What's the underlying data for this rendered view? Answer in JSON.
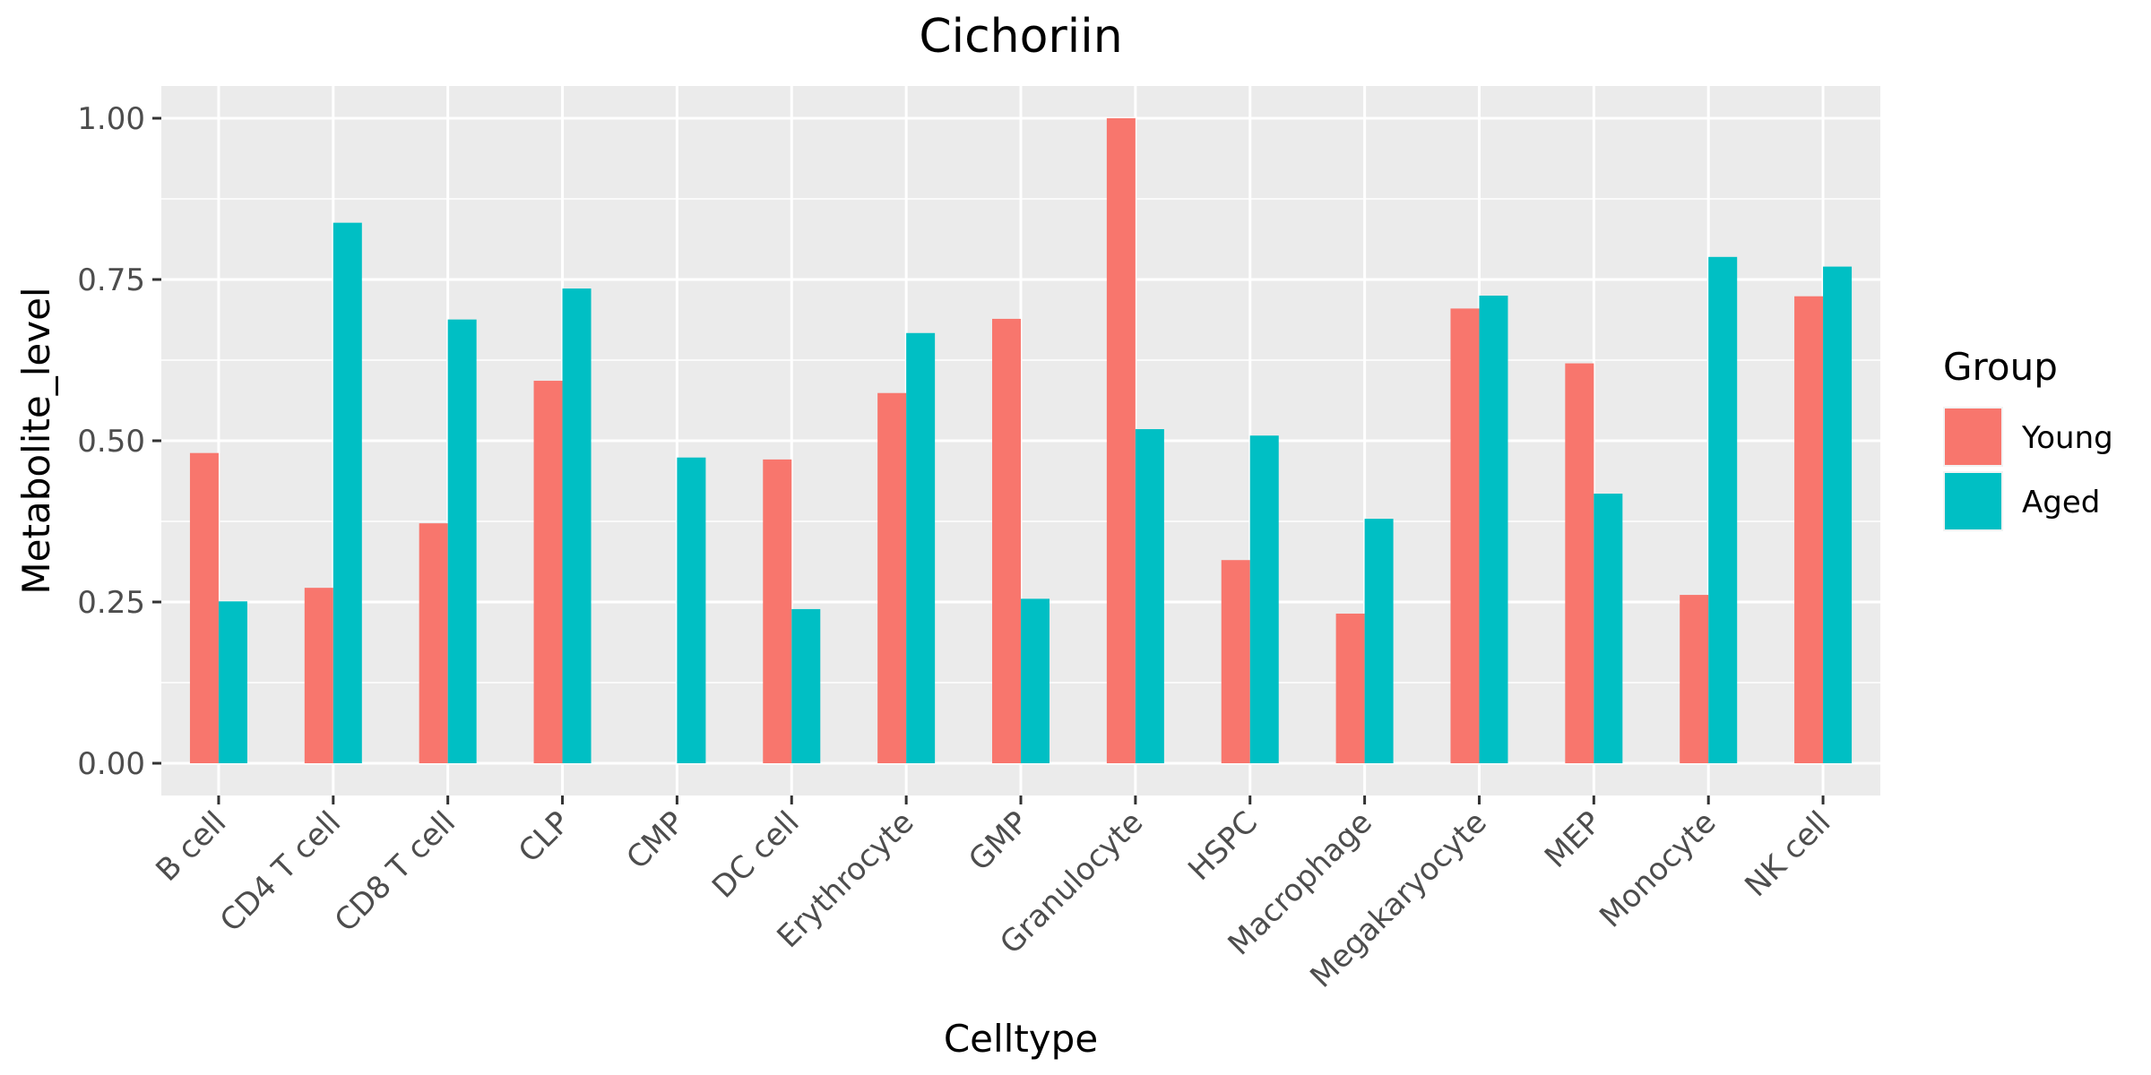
{
  "chart_data": {
    "type": "bar",
    "title": "Cichoriin",
    "xlabel": "Celltype",
    "ylabel": "Metabolite_level",
    "categories": [
      "B cell",
      "CD4 T cell",
      "CD8 T cell",
      "CLP",
      "CMP",
      "DC cell",
      "Erythrocyte",
      "GMP",
      "Granulocyte",
      "HSPC",
      "Macrophage",
      "Megakaryocyte",
      "MEP",
      "Monocyte",
      "NK cell"
    ],
    "series": [
      {
        "name": "Young",
        "color": "#F8766D",
        "values": [
          0.481,
          0.272,
          0.372,
          0.593,
          0.0,
          0.471,
          0.574,
          0.689,
          1.0,
          0.315,
          0.232,
          0.705,
          0.62,
          0.261,
          0.724
        ]
      },
      {
        "name": "Aged",
        "color": "#00BFC4",
        "values": [
          0.251,
          0.838,
          0.688,
          0.736,
          0.474,
          0.239,
          0.667,
          0.255,
          0.518,
          0.508,
          0.379,
          0.725,
          0.418,
          0.785,
          0.77
        ]
      }
    ],
    "ylim": [
      -0.05,
      1.05
    ],
    "yticks": [
      0.0,
      0.25,
      0.5,
      0.75,
      1.0
    ],
    "ytick_labels": [
      "0.00",
      "0.25",
      "0.50",
      "0.75",
      "1.00"
    ],
    "grid": true,
    "legend": {
      "title": "Group",
      "position": "right"
    }
  }
}
